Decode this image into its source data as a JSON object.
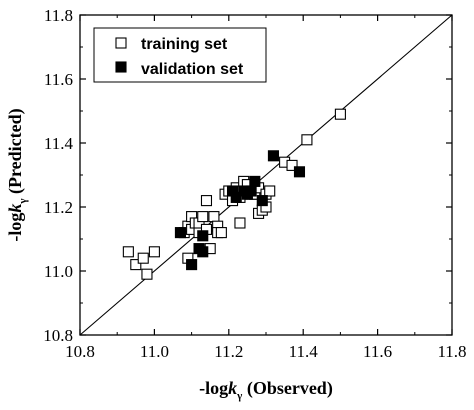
{
  "chart_data": {
    "type": "scatter",
    "xlabel": "-logkγ (Observed)",
    "xlabel_parts": {
      "prefix": "-log",
      "italic": "k",
      "sub": "γ",
      "suffix": " (Observed)"
    },
    "ylabel": "-logkγ (Predicted)",
    "ylabel_parts": {
      "prefix": "-log",
      "italic": "k",
      "sub": "γ",
      "suffix": " (Predicted)"
    },
    "xlim": [
      10.8,
      11.8
    ],
    "ylim": [
      10.8,
      11.8
    ],
    "xticks": [
      "10.8",
      "11.0",
      "11.2",
      "11.4",
      "11.6",
      "11.8"
    ],
    "yticks": [
      "10.8",
      "11.0",
      "11.2",
      "11.4",
      "11.6",
      "11.8"
    ],
    "grid": false,
    "legend_position": "top-left",
    "reference_line": {
      "from": [
        10.8,
        10.8
      ],
      "to": [
        11.8,
        11.8
      ]
    },
    "series": [
      {
        "name": "training set",
        "marker": "open-square",
        "points": [
          [
            10.93,
            11.06
          ],
          [
            10.95,
            11.02
          ],
          [
            10.97,
            11.04
          ],
          [
            10.98,
            10.99
          ],
          [
            11.0,
            11.06
          ],
          [
            11.08,
            11.12
          ],
          [
            11.09,
            11.14
          ],
          [
            11.09,
            11.04
          ],
          [
            11.1,
            11.17
          ],
          [
            11.1,
            11.13
          ],
          [
            11.11,
            11.15
          ],
          [
            11.12,
            11.12
          ],
          [
            11.12,
            11.15
          ],
          [
            11.13,
            11.17
          ],
          [
            11.14,
            11.22
          ],
          [
            11.14,
            11.13
          ],
          [
            11.15,
            11.07
          ],
          [
            11.16,
            11.17
          ],
          [
            11.17,
            11.14
          ],
          [
            11.17,
            11.12
          ],
          [
            11.18,
            11.12
          ],
          [
            11.19,
            11.24
          ],
          [
            11.2,
            11.25
          ],
          [
            11.21,
            11.22
          ],
          [
            11.22,
            11.26
          ],
          [
            11.23,
            11.15
          ],
          [
            11.23,
            11.23
          ],
          [
            11.24,
            11.28
          ],
          [
            11.25,
            11.27
          ],
          [
            11.26,
            11.24
          ],
          [
            11.27,
            11.24
          ],
          [
            11.28,
            11.26
          ],
          [
            11.28,
            11.18
          ],
          [
            11.29,
            11.19
          ],
          [
            11.3,
            11.2
          ],
          [
            11.3,
            11.24
          ],
          [
            11.31,
            11.25
          ],
          [
            11.35,
            11.34
          ],
          [
            11.37,
            11.33
          ],
          [
            11.41,
            11.41
          ],
          [
            11.5,
            11.49
          ]
        ]
      },
      {
        "name": "validation set",
        "marker": "filled-square",
        "points": [
          [
            11.07,
            11.12
          ],
          [
            11.1,
            11.02
          ],
          [
            11.12,
            11.07
          ],
          [
            11.13,
            11.06
          ],
          [
            11.13,
            11.11
          ],
          [
            11.21,
            11.25
          ],
          [
            11.22,
            11.23
          ],
          [
            11.24,
            11.25
          ],
          [
            11.25,
            11.24
          ],
          [
            11.26,
            11.25
          ],
          [
            11.27,
            11.28
          ],
          [
            11.29,
            11.22
          ],
          [
            11.32,
            11.36
          ],
          [
            11.39,
            11.31
          ]
        ]
      }
    ]
  }
}
